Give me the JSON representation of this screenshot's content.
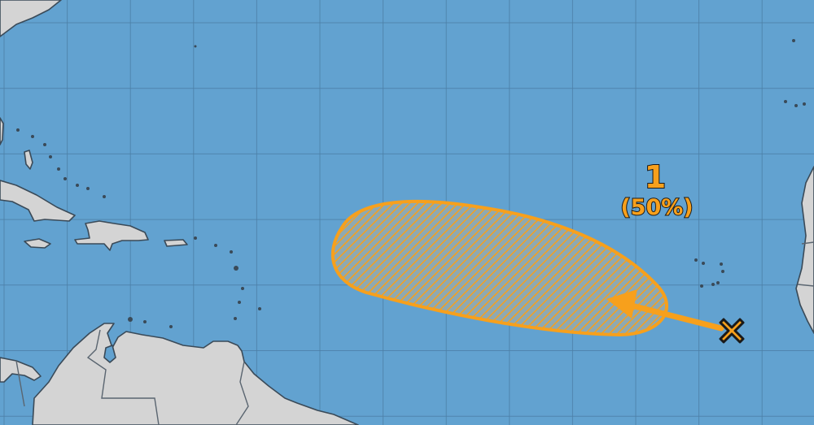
{
  "outlook": {
    "system_number": "1",
    "probability": "(50%)",
    "probability_value": 50,
    "colors": {
      "ocean": "#62a2d0",
      "land": "#d4d4d4",
      "outlook_area": "#f7a01c",
      "marker_outline": "#1a1a1a"
    },
    "icons": {
      "disturbance_marker": "x-mark",
      "motion": "arrow-west-northwest"
    }
  }
}
